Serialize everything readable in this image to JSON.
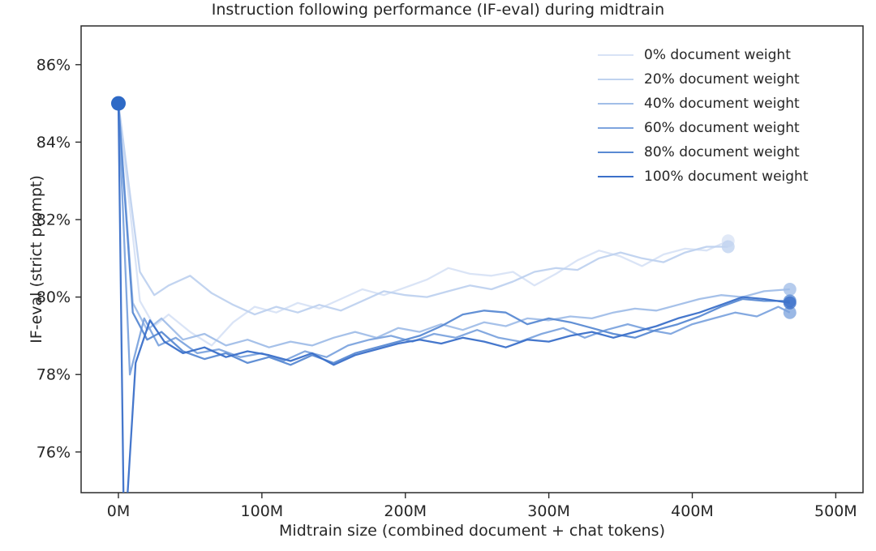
{
  "chart_data": {
    "type": "line",
    "title": "Instruction following performance (IF-eval) during midtrain",
    "xlabel": "Midtrain size (combined document + chat tokens)",
    "ylabel": "IF-eval (strict prompt)",
    "x_unit": "millions of tokens",
    "y_unit": "percent",
    "xlim": [
      -26,
      519
    ],
    "ylim": [
      74.95,
      87.0
    ],
    "grid": false,
    "legend_position": "upper right",
    "x_ticks": [
      {
        "value": 0,
        "label": "0M"
      },
      {
        "value": 100,
        "label": "100M"
      },
      {
        "value": 200,
        "label": "200M"
      },
      {
        "value": 300,
        "label": "300M"
      },
      {
        "value": 400,
        "label": "400M"
      },
      {
        "value": 500,
        "label": "500M"
      }
    ],
    "y_ticks": [
      {
        "value": 76,
        "label": "76%"
      },
      {
        "value": 78,
        "label": "78%"
      },
      {
        "value": 80,
        "label": "80%"
      },
      {
        "value": 82,
        "label": "82%"
      },
      {
        "value": 84,
        "label": "84%"
      },
      {
        "value": 86,
        "label": "86%"
      }
    ],
    "start_marker": {
      "x": 0,
      "y": 85.0,
      "color": "#2e6ac6",
      "radius": 9
    },
    "series": [
      {
        "key": "0pct",
        "name": "0% document weight",
        "color": "#d8e3f5",
        "end_marker": true,
        "points": [
          [
            0,
            85.0
          ],
          [
            15,
            79.9
          ],
          [
            25,
            79.25
          ],
          [
            35,
            79.55
          ],
          [
            50,
            79.1
          ],
          [
            65,
            78.75
          ],
          [
            80,
            79.35
          ],
          [
            95,
            79.75
          ],
          [
            110,
            79.6
          ],
          [
            125,
            79.85
          ],
          [
            140,
            79.7
          ],
          [
            155,
            79.95
          ],
          [
            170,
            80.2
          ],
          [
            185,
            80.05
          ],
          [
            200,
            80.25
          ],
          [
            215,
            80.45
          ],
          [
            230,
            80.75
          ],
          [
            245,
            80.6
          ],
          [
            260,
            80.55
          ],
          [
            275,
            80.65
          ],
          [
            290,
            80.3
          ],
          [
            305,
            80.6
          ],
          [
            320,
            80.95
          ],
          [
            335,
            81.2
          ],
          [
            350,
            81.05
          ],
          [
            365,
            80.8
          ],
          [
            380,
            81.1
          ],
          [
            395,
            81.25
          ],
          [
            410,
            81.2
          ],
          [
            425,
            81.45
          ]
        ]
      },
      {
        "key": "20pct",
        "name": "20% document weight",
        "color": "#bfd2ef",
        "end_marker": true,
        "points": [
          [
            0,
            85.0
          ],
          [
            15,
            80.65
          ],
          [
            25,
            80.05
          ],
          [
            35,
            80.3
          ],
          [
            50,
            80.55
          ],
          [
            65,
            80.1
          ],
          [
            80,
            79.8
          ],
          [
            95,
            79.55
          ],
          [
            110,
            79.75
          ],
          [
            125,
            79.6
          ],
          [
            140,
            79.8
          ],
          [
            155,
            79.65
          ],
          [
            170,
            79.9
          ],
          [
            185,
            80.15
          ],
          [
            200,
            80.05
          ],
          [
            215,
            80.0
          ],
          [
            230,
            80.15
          ],
          [
            245,
            80.3
          ],
          [
            260,
            80.2
          ],
          [
            275,
            80.4
          ],
          [
            290,
            80.65
          ],
          [
            305,
            80.75
          ],
          [
            320,
            80.7
          ],
          [
            335,
            81.0
          ],
          [
            350,
            81.15
          ],
          [
            365,
            81.0
          ],
          [
            380,
            80.9
          ],
          [
            395,
            81.15
          ],
          [
            410,
            81.3
          ],
          [
            425,
            81.3
          ]
        ]
      },
      {
        "key": "40pct",
        "name": "40% document weight",
        "color": "#a1bee8",
        "end_marker": true,
        "points": [
          [
            0,
            85.0
          ],
          [
            10,
            79.85
          ],
          [
            20,
            79.15
          ],
          [
            30,
            79.45
          ],
          [
            45,
            78.9
          ],
          [
            60,
            79.05
          ],
          [
            75,
            78.75
          ],
          [
            90,
            78.9
          ],
          [
            105,
            78.7
          ],
          [
            120,
            78.85
          ],
          [
            135,
            78.75
          ],
          [
            150,
            78.95
          ],
          [
            165,
            79.1
          ],
          [
            180,
            78.95
          ],
          [
            195,
            79.2
          ],
          [
            210,
            79.1
          ],
          [
            225,
            79.3
          ],
          [
            240,
            79.15
          ],
          [
            255,
            79.35
          ],
          [
            270,
            79.25
          ],
          [
            285,
            79.45
          ],
          [
            300,
            79.4
          ],
          [
            315,
            79.5
          ],
          [
            330,
            79.45
          ],
          [
            345,
            79.6
          ],
          [
            360,
            79.7
          ],
          [
            375,
            79.65
          ],
          [
            390,
            79.8
          ],
          [
            405,
            79.95
          ],
          [
            420,
            80.05
          ],
          [
            435,
            80.0
          ],
          [
            450,
            80.15
          ],
          [
            468,
            80.2
          ]
        ]
      },
      {
        "key": "60pct",
        "name": "60% document weight",
        "color": "#7da4de",
        "end_marker": true,
        "points": [
          [
            0,
            85.0
          ],
          [
            8,
            78.0
          ],
          [
            18,
            79.45
          ],
          [
            28,
            78.75
          ],
          [
            40,
            78.95
          ],
          [
            55,
            78.55
          ],
          [
            70,
            78.65
          ],
          [
            85,
            78.45
          ],
          [
            100,
            78.55
          ],
          [
            115,
            78.35
          ],
          [
            130,
            78.6
          ],
          [
            145,
            78.45
          ],
          [
            160,
            78.75
          ],
          [
            175,
            78.9
          ],
          [
            190,
            79.0
          ],
          [
            205,
            78.85
          ],
          [
            220,
            79.05
          ],
          [
            235,
            78.95
          ],
          [
            250,
            79.15
          ],
          [
            265,
            78.95
          ],
          [
            280,
            78.85
          ],
          [
            295,
            79.05
          ],
          [
            310,
            79.2
          ],
          [
            325,
            78.95
          ],
          [
            340,
            79.15
          ],
          [
            355,
            79.3
          ],
          [
            370,
            79.15
          ],
          [
            385,
            79.05
          ],
          [
            400,
            79.3
          ],
          [
            415,
            79.45
          ],
          [
            430,
            79.6
          ],
          [
            445,
            79.5
          ],
          [
            460,
            79.75
          ],
          [
            468,
            79.6
          ]
        ]
      },
      {
        "key": "80pct",
        "name": "80% document weight",
        "color": "#5a8ad3",
        "end_marker": true,
        "points": [
          [
            0,
            85.0
          ],
          [
            10,
            79.6
          ],
          [
            20,
            78.9
          ],
          [
            30,
            79.1
          ],
          [
            45,
            78.6
          ],
          [
            60,
            78.4
          ],
          [
            75,
            78.55
          ],
          [
            90,
            78.3
          ],
          [
            105,
            78.45
          ],
          [
            120,
            78.25
          ],
          [
            135,
            78.5
          ],
          [
            150,
            78.3
          ],
          [
            165,
            78.55
          ],
          [
            180,
            78.7
          ],
          [
            195,
            78.85
          ],
          [
            210,
            79.0
          ],
          [
            225,
            79.25
          ],
          [
            240,
            79.55
          ],
          [
            255,
            79.65
          ],
          [
            270,
            79.6
          ],
          [
            285,
            79.3
          ],
          [
            300,
            79.45
          ],
          [
            315,
            79.35
          ],
          [
            330,
            79.2
          ],
          [
            345,
            79.05
          ],
          [
            360,
            78.95
          ],
          [
            375,
            79.15
          ],
          [
            390,
            79.3
          ],
          [
            405,
            79.5
          ],
          [
            420,
            79.75
          ],
          [
            435,
            79.95
          ],
          [
            450,
            79.9
          ],
          [
            468,
            79.9
          ]
        ]
      },
      {
        "key": "100pct",
        "name": "100% document weight",
        "color": "#3b70c9",
        "end_marker": true,
        "points": [
          [
            0,
            85.0
          ],
          [
            4,
            73.5
          ],
          [
            12,
            78.3
          ],
          [
            22,
            79.4
          ],
          [
            32,
            78.85
          ],
          [
            45,
            78.55
          ],
          [
            60,
            78.7
          ],
          [
            75,
            78.45
          ],
          [
            90,
            78.6
          ],
          [
            105,
            78.5
          ],
          [
            120,
            78.35
          ],
          [
            135,
            78.55
          ],
          [
            150,
            78.25
          ],
          [
            165,
            78.5
          ],
          [
            180,
            78.65
          ],
          [
            195,
            78.8
          ],
          [
            210,
            78.9
          ],
          [
            225,
            78.8
          ],
          [
            240,
            78.95
          ],
          [
            255,
            78.85
          ],
          [
            270,
            78.7
          ],
          [
            285,
            78.9
          ],
          [
            300,
            78.85
          ],
          [
            315,
            79.0
          ],
          [
            330,
            79.1
          ],
          [
            345,
            78.95
          ],
          [
            360,
            79.1
          ],
          [
            375,
            79.25
          ],
          [
            390,
            79.45
          ],
          [
            405,
            79.6
          ],
          [
            420,
            79.8
          ],
          [
            435,
            80.0
          ],
          [
            450,
            79.95
          ],
          [
            468,
            79.85
          ]
        ]
      }
    ]
  }
}
